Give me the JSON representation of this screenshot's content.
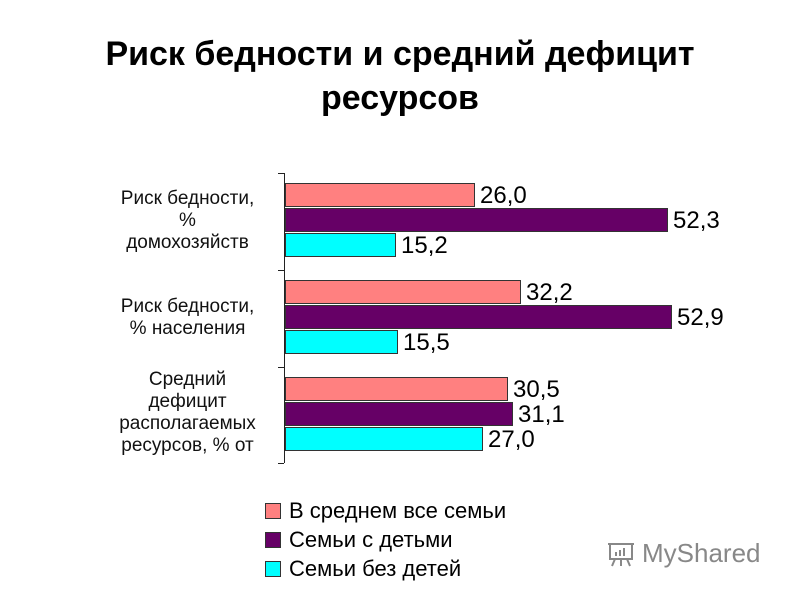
{
  "title_line1": "Риск бедности и средний дефицит",
  "title_line2": "ресурсов",
  "chart_data": {
    "type": "bar",
    "orientation": "horizontal",
    "title": "Риск бедности и средний дефицит ресурсов",
    "categories": [
      "Риск бедности, % домохозяйств",
      "Риск бедности, % населения",
      "Средний дефицит располагаемых ресурсов, % от"
    ],
    "category_lines": [
      [
        "Риск бедности,",
        "%",
        "домохозяйств"
      ],
      [
        "Риск бедности,",
        "% населения"
      ],
      [
        "Средний",
        "дефицит",
        "располагаемых",
        "ресурсов, % от"
      ]
    ],
    "series": [
      {
        "name": "В среднем все семьи",
        "color": "#FF8080",
        "values": [
          26.0,
          32.2,
          30.5
        ],
        "labels": [
          "26,0",
          "32,2",
          "30,5"
        ]
      },
      {
        "name": "Семьи с детьми",
        "color": "#660066",
        "values": [
          52.3,
          52.9,
          31.1
        ],
        "labels": [
          "52,3",
          "52,9",
          "31,1"
        ]
      },
      {
        "name": "Семьи без детей",
        "color": "#00FFFF",
        "values": [
          15.2,
          15.5,
          27.0
        ],
        "labels": [
          "15,2",
          "15,5",
          "27,0"
        ]
      }
    ],
    "xlabel": "",
    "ylabel": "",
    "grid": false,
    "legend_position": "bottom",
    "data_labels": true
  },
  "watermark": "MyShared"
}
